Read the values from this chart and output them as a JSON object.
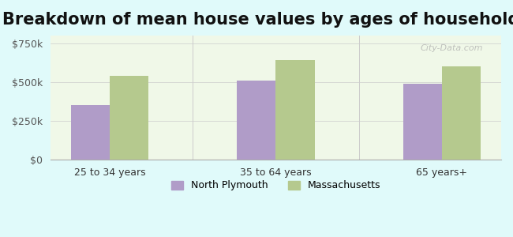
{
  "title": "Breakdown of mean house values by ages of householders",
  "categories": [
    "25 to 34 years",
    "35 to 64 years",
    "65 years+"
  ],
  "series": {
    "North Plymouth": [
      350000,
      510000,
      490000
    ],
    "Massachusetts": [
      540000,
      640000,
      600000
    ]
  },
  "bar_colors": {
    "North Plymouth": "#b09cc8",
    "Massachusetts": "#b5c98e"
  },
  "ylim": [
    0,
    800000
  ],
  "yticks": [
    0,
    250000,
    500000,
    750000
  ],
  "ytick_labels": [
    "$0",
    "$250k",
    "$500k",
    "$750k"
  ],
  "background_color": "#e0fafa",
  "plot_bg_color": "#f0f8e8",
  "title_fontsize": 15,
  "bar_width": 0.35,
  "figsize": [
    6.5,
    3.0
  ],
  "dpi": 100
}
